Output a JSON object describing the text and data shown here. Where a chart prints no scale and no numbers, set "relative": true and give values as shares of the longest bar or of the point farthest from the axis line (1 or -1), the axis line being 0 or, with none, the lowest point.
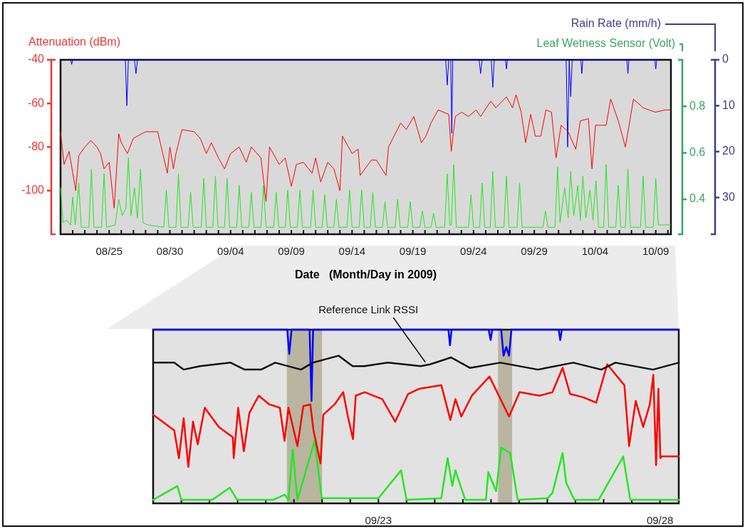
{
  "chart_data": [
    {
      "type": "line",
      "ylabel": "Attenuation (dBm)",
      "y2label": "Leaf Wetness Sensor (Volt)",
      "y3label": "Rain Rate (mm/h)",
      "xlabel": "Date   (Month/Day in 2009)",
      "xlim": [
        "2009-08-21",
        "2009-10-10T06:00"
      ],
      "xticks": [
        {
          "value": "2009-08-22",
          "label": null
        },
        {
          "value": "2009-08-23",
          "label": null
        },
        {
          "value": "2009-08-24",
          "label": null
        },
        {
          "value": "2009-08-25",
          "label": "08/25"
        },
        {
          "value": "2009-08-26",
          "label": null
        },
        {
          "value": "2009-08-27",
          "label": null
        },
        {
          "value": "2009-08-28",
          "label": null
        },
        {
          "value": "2009-08-29",
          "label": null
        },
        {
          "value": "2009-08-30",
          "label": "08/30"
        },
        {
          "value": "2009-08-31",
          "label": null
        },
        {
          "value": "2009-09-01",
          "label": null
        },
        {
          "value": "2009-09-02",
          "label": null
        },
        {
          "value": "2009-09-03",
          "label": null
        },
        {
          "value": "2009-09-04",
          "label": "09/04"
        },
        {
          "value": "2009-09-05",
          "label": null
        },
        {
          "value": "2009-09-06",
          "label": null
        },
        {
          "value": "2009-09-07",
          "label": null
        },
        {
          "value": "2009-09-08",
          "label": null
        },
        {
          "value": "2009-09-09",
          "label": "09/09"
        },
        {
          "value": "2009-09-10",
          "label": null
        },
        {
          "value": "2009-09-11",
          "label": null
        },
        {
          "value": "2009-09-12",
          "label": null
        },
        {
          "value": "2009-09-13",
          "label": null
        },
        {
          "value": "2009-09-14",
          "label": "09/14"
        },
        {
          "value": "2009-09-15",
          "label": null
        },
        {
          "value": "2009-09-16",
          "label": null
        },
        {
          "value": "2009-09-17",
          "label": null
        },
        {
          "value": "2009-09-18",
          "label": null
        },
        {
          "value": "2009-09-19",
          "label": "09/19"
        },
        {
          "value": "2009-09-20",
          "label": null
        },
        {
          "value": "2009-09-21",
          "label": null
        },
        {
          "value": "2009-09-22",
          "label": null
        },
        {
          "value": "2009-09-23",
          "label": null
        },
        {
          "value": "2009-09-24",
          "label": "09/24"
        },
        {
          "value": "2009-09-25",
          "label": null
        },
        {
          "value": "2009-09-26",
          "label": null
        },
        {
          "value": "2009-09-27",
          "label": null
        },
        {
          "value": "2009-09-28",
          "label": null
        },
        {
          "value": "2009-09-29",
          "label": "09/29"
        },
        {
          "value": "2009-09-30",
          "label": null
        },
        {
          "value": "2009-10-01",
          "label": null
        },
        {
          "value": "2009-10-02",
          "label": null
        },
        {
          "value": "2009-10-03",
          "label": null
        },
        {
          "value": "2009-10-04",
          "label": "10/04"
        },
        {
          "value": "2009-10-05",
          "label": null
        },
        {
          "value": "2009-10-06",
          "label": null
        },
        {
          "value": "2009-10-07",
          "label": null
        },
        {
          "value": "2009-10-08",
          "label": null
        },
        {
          "value": "2009-10-09",
          "label": "10/09"
        },
        {
          "value": "2009-10-10",
          "label": null
        }
      ],
      "ylim": [
        -120,
        -40
      ],
      "yticks": [
        -40,
        -60,
        -80,
        -100
      ],
      "y2lim": [
        0.25,
        1.0
      ],
      "y2ticks": [
        0.4,
        0.6,
        0.8
      ],
      "y3lim": [
        38,
        0
      ],
      "y3ticks": [
        0,
        10,
        20,
        30
      ],
      "series": [
        {
          "color": "#ff0000",
          "x": [
            "2009-08-21T00:00",
            "2009-08-21T07:00",
            "2009-08-21T17:00",
            "2009-08-22T06:00",
            "2009-08-22T12:00",
            "2009-08-23T00:00",
            "2009-08-23T12:00",
            "2009-08-24T00:00",
            "2009-08-24T07:00",
            "2009-08-24T14:00",
            "2009-08-25T00:00",
            "2009-08-25T10:00",
            "2009-08-25T19:00",
            "2009-08-26T00:00",
            "2009-08-26T12:00",
            "2009-08-27T00:00",
            "2009-08-28T00:00",
            "2009-08-29T00:00",
            "2009-08-29T12:00",
            "2009-08-29T19:00",
            "2009-08-30T00:00",
            "2009-08-30T07:00",
            "2009-08-30T12:00",
            "2009-08-31T00:00",
            "2009-09-01T00:00",
            "2009-09-01T12:00",
            "2009-09-02T00:00",
            "2009-09-02T10:00",
            "2009-09-03T00:00",
            "2009-09-03T12:00",
            "2009-09-04T00:00",
            "2009-09-04T17:00",
            "2009-09-05T07:00",
            "2009-09-05T17:00",
            "2009-09-06T12:00",
            "2009-09-06T22:00",
            "2009-09-07T05:00",
            "2009-09-08T00:00",
            "2009-09-08T12:00",
            "2009-09-09T00:00",
            "2009-09-09T10:00",
            "2009-09-10T00:00",
            "2009-09-10T17:00",
            "2009-09-11T00:00",
            "2009-09-11T10:00",
            "2009-09-12T00:00",
            "2009-09-12T12:00",
            "2009-09-13T00:00",
            "2009-09-13T05:00",
            "2009-09-14T00:00",
            "2009-09-14T12:00",
            "2009-09-14T16:00",
            "2009-09-15T14:00",
            "2009-09-16T00:00",
            "2009-09-16T19:00",
            "2009-09-17T00:00",
            "2009-09-18T00:00",
            "2009-09-18T11:00",
            "2009-09-19T02:00",
            "2009-09-19T17:00",
            "2009-09-20T02:00",
            "2009-09-20T12:00",
            "2009-09-21T02:00",
            "2009-09-21T23:00",
            "2009-09-22T04:00",
            "2009-09-22T12:00",
            "2009-09-23T00:00",
            "2009-09-23T14:00",
            "2009-09-24T05:00",
            "2009-09-24T14:00",
            "2009-09-25T10:00",
            "2009-09-25T20:00",
            "2009-09-26T17:00",
            "2009-09-27T05:00",
            "2009-09-27T12:00",
            "2009-09-27T22:00",
            "2009-09-28T07:00",
            "2009-09-28T17:00",
            "2009-09-29T02:00",
            "2009-09-29T13:00",
            "2009-09-29T23:00",
            "2009-09-30T10:00",
            "2009-09-30T19:00",
            "2009-10-01T05:00",
            "2009-10-01T19:00",
            "2009-10-02T10:00",
            "2009-10-02T19:00",
            "2009-10-03T11:00",
            "2009-10-03T18:00",
            "2009-10-04T01:00",
            "2009-10-04T22:00",
            "2009-10-05T07:00",
            "2009-10-05T22:00",
            "2009-10-06T12:00",
            "2009-10-06T23:00",
            "2009-10-07T04:00",
            "2009-10-07T23:00",
            "2009-10-08T23:00",
            "2009-10-09T19:00",
            "2009-10-10T05:00"
          ],
          "values": [
            -73,
            -88,
            -82,
            -100,
            -84,
            -80,
            -77,
            -80,
            -83,
            -90,
            -87,
            -108,
            -74,
            -78,
            -83,
            -76,
            -73,
            -73,
            -85,
            -92,
            -80,
            -90,
            -83,
            -72,
            -73,
            -76,
            -83,
            -78,
            -85,
            -90,
            -83,
            -80,
            -87,
            -80,
            -85,
            -105,
            -80,
            -88,
            -85,
            -98,
            -88,
            -87,
            -92,
            -85,
            -96,
            -87,
            -90,
            -100,
            -75,
            -83,
            -81,
            -93,
            -86,
            -86,
            -93,
            -80,
            -69,
            -72,
            -66,
            -78,
            -75,
            -69,
            -63,
            -65,
            -82,
            -66,
            -64,
            -66,
            -63,
            -66,
            -59,
            -62,
            -57,
            -62,
            -56,
            -64,
            -78,
            -65,
            -75,
            -75,
            -63,
            -64,
            -85,
            -70,
            -73,
            -81,
            -68,
            -67,
            -90,
            -70,
            -70,
            -58,
            -68,
            -80,
            -65,
            -58,
            -62,
            -64,
            -63,
            -63
          ]
        },
        {
          "color": "#22e822",
          "axis": "y2",
          "x": [
            "2009-08-21T00:00",
            "2009-08-21T05:00",
            "2009-08-21T12:00",
            "2009-08-21T20:00",
            "2009-08-22T00:00",
            "2009-08-22T05:00",
            "2009-08-22T12:00",
            "2009-08-22T17:00",
            "2009-08-23T08:00",
            "2009-08-23T13:00",
            "2009-08-23T18:00",
            "2009-08-24T09:00",
            "2009-08-24T14:00",
            "2009-08-24T19:00",
            "2009-08-25T12:00",
            "2009-08-25T19:00",
            "2009-08-26T02:00",
            "2009-08-26T09:00",
            "2009-08-26T14:00",
            "2009-08-26T19:00",
            "2009-08-27T02:00",
            "2009-08-27T08:00",
            "2009-08-27T14:00",
            "2009-08-27T19:00",
            "2009-08-28T04:00",
            "2009-08-29T12:00",
            "2009-08-29T17:00",
            "2009-08-29T22:00",
            "2009-08-30T12:00",
            "2009-08-30T17:00",
            "2009-08-30T22:00",
            "2009-08-31T12:00",
            "2009-08-31T17:00",
            "2009-08-31T22:00",
            "2009-09-01T14:00",
            "2009-09-01T19:00",
            "2009-09-02T00:00",
            "2009-09-02T13:00",
            "2009-09-02T18:00",
            "2009-09-02T23:00",
            "2009-09-03T12:00",
            "2009-09-03T17:00",
            "2009-09-03T22:00",
            "2009-09-04T12:00",
            "2009-09-04T17:00",
            "2009-09-04T22:00",
            "2009-09-05T12:00",
            "2009-09-05T17:00",
            "2009-09-05T22:00",
            "2009-09-06T12:00",
            "2009-09-06T17:00",
            "2009-09-06T22:00",
            "2009-09-07T13:00",
            "2009-09-07T18:00",
            "2009-09-07T23:00",
            "2009-09-08T12:00",
            "2009-09-08T17:00",
            "2009-09-08T22:00",
            "2009-09-09T12:00",
            "2009-09-09T17:00",
            "2009-09-09T22:00",
            "2009-09-10T14:00",
            "2009-09-10T19:00",
            "2009-09-11T00:00",
            "2009-09-11T13:00",
            "2009-09-11T18:00",
            "2009-09-11T23:00",
            "2009-09-12T12:00",
            "2009-09-12T17:00",
            "2009-09-12T22:00",
            "2009-09-13T14:00",
            "2009-09-13T19:00",
            "2009-09-14T00:00",
            "2009-09-14T14:00",
            "2009-09-14T19:00",
            "2009-09-15T00:00",
            "2009-09-15T12:00",
            "2009-09-15T17:00",
            "2009-09-15T22:00",
            "2009-09-16T12:00",
            "2009-09-16T17:00",
            "2009-09-16T22:00",
            "2009-09-17T13:00",
            "2009-09-17T18:00",
            "2009-09-17T23:00",
            "2009-09-18T14:00",
            "2009-09-18T19:00",
            "2009-09-19T00:00",
            "2009-09-19T14:00",
            "2009-09-19T19:00",
            "2009-09-20T00:00",
            "2009-09-20T12:00",
            "2009-09-20T17:00",
            "2009-09-20T22:00",
            "2009-09-21T15:00",
            "2009-09-21T20:00",
            "2009-09-22T01:00",
            "2009-09-22T04:00",
            "2009-09-22T09:00",
            "2009-09-22T14:00",
            "2009-09-23T14:00",
            "2009-09-23T19:00",
            "2009-09-24T00:00",
            "2009-09-24T12:00",
            "2009-09-24T17:00",
            "2009-09-24T22:00",
            "2009-09-25T09:00",
            "2009-09-25T14:00",
            "2009-09-25T19:00",
            "2009-09-26T12:00",
            "2009-09-26T17:00",
            "2009-09-26T22:00",
            "2009-09-27T14:00",
            "2009-09-27T19:00",
            "2009-09-28T00:00",
            "2009-09-29T17:00",
            "2009-09-29T22:00",
            "2009-09-30T03:00",
            "2009-09-30T17:00",
            "2009-09-30T22:00",
            "2009-10-01T03:00",
            "2009-10-01T12:00",
            "2009-10-01T19:00",
            "2009-10-02T00:00",
            "2009-10-02T06:00",
            "2009-10-02T14:00",
            "2009-10-02T19:00",
            "2009-10-03T00:00",
            "2009-10-03T06:00",
            "2009-10-03T14:00",
            "2009-10-03T20:00",
            "2009-10-04T02:00",
            "2009-10-04T07:00",
            "2009-10-04T17:00",
            "2009-10-04T22:00",
            "2009-10-05T03:00",
            "2009-10-05T17:00",
            "2009-10-05T22:00",
            "2009-10-06T03:00",
            "2009-10-06T12:00",
            "2009-10-06T17:00",
            "2009-10-06T22:00",
            "2009-10-07T18:00",
            "2009-10-07T23:00",
            "2009-10-08T04:00",
            "2009-10-08T19:00",
            "2009-10-09T00:00",
            "2009-10-09T05:00",
            "2009-10-10T05:00"
          ],
          "values": [
            0.45,
            0.3,
            0.31,
            0.29,
            0.41,
            0.29,
            0.47,
            0.28,
            0.28,
            0.53,
            0.28,
            0.28,
            0.51,
            0.28,
            0.29,
            0.4,
            0.33,
            0.36,
            0.58,
            0.33,
            0.45,
            0.32,
            0.53,
            0.3,
            0.29,
            0.28,
            0.44,
            0.28,
            0.28,
            0.51,
            0.28,
            0.28,
            0.43,
            0.28,
            0.28,
            0.49,
            0.28,
            0.28,
            0.5,
            0.28,
            0.28,
            0.49,
            0.28,
            0.28,
            0.46,
            0.28,
            0.28,
            0.43,
            0.28,
            0.28,
            0.46,
            0.28,
            0.28,
            0.43,
            0.28,
            0.28,
            0.44,
            0.28,
            0.28,
            0.44,
            0.28,
            0.28,
            0.44,
            0.28,
            0.28,
            0.42,
            0.28,
            0.28,
            0.4,
            0.28,
            0.28,
            0.44,
            0.28,
            0.28,
            0.44,
            0.28,
            0.28,
            0.43,
            0.28,
            0.28,
            0.39,
            0.28,
            0.28,
            0.4,
            0.28,
            0.28,
            0.39,
            0.28,
            0.28,
            0.35,
            0.28,
            0.28,
            0.34,
            0.28,
            0.28,
            0.51,
            0.29,
            0.29,
            0.55,
            0.28,
            0.28,
            0.42,
            0.28,
            0.28,
            0.47,
            0.28,
            0.28,
            0.52,
            0.28,
            0.28,
            0.5,
            0.28,
            0.28,
            0.47,
            0.28,
            0.28,
            0.35,
            0.28,
            0.28,
            0.54,
            0.3,
            0.45,
            0.32,
            0.52,
            0.33,
            0.46,
            0.31,
            0.5,
            0.32,
            0.44,
            0.31,
            0.48,
            0.28,
            0.28,
            0.55,
            0.28,
            0.28,
            0.46,
            0.28,
            0.28,
            0.53,
            0.28,
            0.28,
            0.5,
            0.28,
            0.28,
            0.49,
            0.29,
            0.29
          ]
        },
        {
          "color": "#0000ff",
          "axis": "y3",
          "x": [
            "2009-08-21T20:00",
            "2009-08-21T22:00",
            "2009-08-22T00:00",
            "2009-08-26T08:00",
            "2009-08-26T11:00",
            "2009-08-26T14:00",
            "2009-08-27T02:00",
            "2009-08-27T05:00",
            "2009-08-27T08:00",
            "2009-09-21T17:00",
            "2009-09-21T20:00",
            "2009-09-21T23:00",
            "2009-09-22T03:00",
            "2009-09-22T05:00",
            "2009-09-22T07:00",
            "2009-09-24T11:00",
            "2009-09-24T14:00",
            "2009-09-24T17:00",
            "2009-09-25T11:00",
            "2009-09-25T14:00",
            "2009-09-25T17:00",
            "2009-09-26T15:00",
            "2009-09-26T17:00",
            "2009-09-26T19:00",
            "2009-10-01T15:00",
            "2009-10-01T18:00",
            "2009-10-01T21:00",
            "2009-10-02T00:00",
            "2009-10-02T03:00",
            "2009-10-02T20:00",
            "2009-10-02T22:00",
            "2009-10-03T00:00",
            "2009-10-06T15:00",
            "2009-10-06T17:00",
            "2009-10-06T19:00",
            "2009-10-08T22:00",
            "2009-10-09T00:00",
            "2009-10-09T02:00"
          ],
          "values": [
            0,
            1,
            0,
            0,
            10,
            0,
            0,
            3,
            0,
            0,
            5.5,
            0,
            0,
            16,
            0,
            0,
            3,
            0,
            0,
            6,
            0,
            0,
            2,
            0,
            0,
            19,
            0,
            8,
            0,
            0,
            3,
            0,
            0,
            3,
            0,
            0,
            2,
            0
          ]
        }
      ]
    },
    {
      "type": "line",
      "relative": true,
      "tick_labels": "x",
      "xlim": [
        "2009-09-19",
        "2009-09-28T08:00"
      ],
      "xticks": [
        {
          "value": "2009-09-19T12:00",
          "label": null
        },
        {
          "value": "2009-09-20",
          "label": null
        },
        {
          "value": "2009-09-20T12:00",
          "label": null
        },
        {
          "value": "2009-09-21",
          "label": null
        },
        {
          "value": "2009-09-21T12:00",
          "label": null
        },
        {
          "value": "2009-09-22",
          "label": null
        },
        {
          "value": "2009-09-22T12:00",
          "label": null
        },
        {
          "value": "2009-09-23",
          "label": "09/23"
        },
        {
          "value": "2009-09-23T12:00",
          "label": null
        },
        {
          "value": "2009-09-24",
          "label": null
        },
        {
          "value": "2009-09-24T12:00",
          "label": null
        },
        {
          "value": "2009-09-25",
          "label": null
        },
        {
          "value": "2009-09-25T12:00",
          "label": null
        },
        {
          "value": "2009-09-26",
          "label": null
        },
        {
          "value": "2009-09-26T12:00",
          "label": null
        },
        {
          "value": "2009-09-27",
          "label": null
        },
        {
          "value": "2009-09-27T12:00",
          "label": null
        },
        {
          "value": "2009-09-28",
          "label": "09/28"
        }
      ],
      "bands": [
        {
          "axis": "x",
          "from": "2009-09-21T09:00",
          "to": "2009-09-22T00:00",
          "color": "#b9b5a0"
        },
        {
          "axis": "x",
          "from": "2009-09-25T03:00",
          "to": "2009-09-25T09:00",
          "color": "#b9b5a0"
        }
      ],
      "annotations": [
        {
          "text": "Reference Link RSSI",
          "x": "2009-09-23T20:00",
          "y": 0.8
        }
      ],
      "series": [
        {
          "color": "#111111",
          "x": [
            "2009-09-19T00:00",
            "2009-09-19T09:00",
            "2009-09-19T13:00",
            "2009-09-19T20:00",
            "2009-09-20T09:00",
            "2009-09-20T15:00",
            "2009-09-20T22:00",
            "2009-09-21T04:00",
            "2009-09-21T15:00",
            "2009-09-21T20:00",
            "2009-09-22T07:00",
            "2009-09-22T13:00",
            "2009-09-22T18:00",
            "2009-09-23T04:00",
            "2009-09-23T18:00",
            "2009-09-23T22:00",
            "2009-09-24T07:00",
            "2009-09-24T15:00",
            "2009-09-25T04:00",
            "2009-09-25T20:00",
            "2009-09-26T11:00",
            "2009-09-26T23:00",
            "2009-09-27T05:00",
            "2009-09-27T21:00",
            "2009-09-28T08:00"
          ],
          "values": [
            0.81,
            0.81,
            0.77,
            0.79,
            0.81,
            0.77,
            0.77,
            0.81,
            0.77,
            0.81,
            0.85,
            0.79,
            0.79,
            0.81,
            0.79,
            0.8,
            0.84,
            0.78,
            0.81,
            0.77,
            0.81,
            0.77,
            0.81,
            0.77,
            0.81
          ]
        },
        {
          "color": "#ff0000",
          "x": [
            "2009-09-19T00:00",
            "2009-09-19T09:00",
            "2009-09-19T11:00",
            "2009-09-19T13:00",
            "2009-09-19T15:00",
            "2009-09-19T17:00",
            "2009-09-19T19:00",
            "2009-09-19T22:00",
            "2009-09-20T04:00",
            "2009-09-20T10:00",
            "2009-09-20T10:20",
            "2009-09-20T12:15",
            "2009-09-20T14:40",
            "2009-09-20T17:00",
            "2009-09-20T21:00",
            "2009-09-21T01:30",
            "2009-09-21T06:00",
            "2009-09-21T08:00",
            "2009-09-21T09:40",
            "2009-09-21T13:30",
            "2009-09-21T16:00",
            "2009-09-21T19:00",
            "2009-09-21T20:20",
            "2009-09-21T23:20",
            "2009-09-22T00:30",
            "2009-09-22T05:20",
            "2009-09-22T09:00",
            "2009-09-22T10:50",
            "2009-09-22T13:10",
            "2009-09-22T14:20",
            "2009-09-22T18:10",
            "2009-09-23T01:40",
            "2009-09-23T07:10",
            "2009-09-23T12:40",
            "2009-09-23T17:30",
            "2009-09-24T02:50",
            "2009-09-24T06:40",
            "2009-09-24T08:50",
            "2009-09-24T11:20",
            "2009-09-24T15:50",
            "2009-09-24T23:20",
            "2009-09-25T07:40",
            "2009-09-25T12:10",
            "2009-09-25T20:40",
            "2009-09-26T02:10",
            "2009-09-26T06:30",
            "2009-09-26T09:40",
            "2009-09-26T15:20",
            "2009-09-26T20:50",
            "2009-09-27T01:30",
            "2009-09-27T08:50",
            "2009-09-27T10:50",
            "2009-09-27T13:40",
            "2009-09-27T16:50",
            "2009-09-27T19:40",
            "2009-09-27T21:10",
            "2009-09-27T22:20",
            "2009-09-27T23:20",
            "2009-09-28T00:10",
            "2009-09-28T00:40",
            "2009-09-28T08:00"
          ],
          "values": [
            0.51,
            0.42,
            0.26,
            0.49,
            0.21,
            0.47,
            0.34,
            0.55,
            0.44,
            0.38,
            0.26,
            0.55,
            0.3,
            0.52,
            0.62,
            0.57,
            0.55,
            0.36,
            0.55,
            0.33,
            0.56,
            0.57,
            0.42,
            0.23,
            0.51,
            0.57,
            0.64,
            0.51,
            0.37,
            0.62,
            0.64,
            0.6,
            0.47,
            0.63,
            0.66,
            0.68,
            0.48,
            0.6,
            0.5,
            0.62,
            0.73,
            0.5,
            0.64,
            0.62,
            0.64,
            0.78,
            0.63,
            0.61,
            0.58,
            0.8,
            0.68,
            0.33,
            0.59,
            0.44,
            0.57,
            0.74,
            0.22,
            0.66,
            0.26,
            0.27,
            0.27
          ]
        },
        {
          "color": "#22e822",
          "x": [
            "2009-09-19T00:00",
            "2009-09-19T10:20",
            "2009-09-19T12:00",
            "2009-09-20T01:10",
            "2009-09-20T08:40",
            "2009-09-20T11:50",
            "2009-09-21T03:10",
            "2009-09-21T08:00",
            "2009-09-21T09:40",
            "2009-09-21T11:30",
            "2009-09-21T13:30",
            "2009-09-21T20:50",
            "2009-09-21T23:50",
            "2009-09-23T00:00",
            "2009-09-23T09:40",
            "2009-09-23T12:00",
            "2009-09-24T02:50",
            "2009-09-24T03:50",
            "2009-09-24T05:30",
            "2009-09-24T07:30",
            "2009-09-24T08:50",
            "2009-09-24T13:00",
            "2009-09-24T21:50",
            "2009-09-24T22:50",
            "2009-09-25T02:10",
            "2009-09-25T04:20",
            "2009-09-25T08:10",
            "2009-09-25T11:20",
            "2009-09-26T00:10",
            "2009-09-26T02:10",
            "2009-09-26T06:30",
            "2009-09-26T08:00",
            "2009-09-26T11:30",
            "2009-09-26T21:50",
            "2009-09-27T08:20",
            "2009-09-27T11:20",
            "2009-09-28T08:00"
          ],
          "values": [
            0.02,
            0.1,
            0.02,
            0.02,
            0.09,
            0.02,
            0.02,
            0.05,
            0.02,
            0.31,
            0.02,
            0.36,
            0.03,
            0.03,
            0.19,
            0.02,
            0.03,
            0.12,
            0.26,
            0.1,
            0.19,
            0.02,
            0.02,
            0.18,
            0.07,
            0.32,
            0.29,
            0.02,
            0.03,
            0.06,
            0.29,
            0.12,
            0.02,
            0.02,
            0.27,
            0.02,
            0.02
          ]
        },
        {
          "color": "#0000ff",
          "x": [
            "2009-09-19T00:00",
            "2009-09-21T09:10",
            "2009-09-21T10:00",
            "2009-09-21T11:00",
            "2009-09-21T18:40",
            "2009-09-21T19:30",
            "2009-09-21T20:10",
            "2009-09-24T05:50",
            "2009-09-24T06:30",
            "2009-09-24T07:10",
            "2009-09-24T23:00",
            "2009-09-24T23:50",
            "2009-09-25T00:30",
            "2009-09-25T04:20",
            "2009-09-25T05:20",
            "2009-09-25T06:30",
            "2009-09-25T07:40",
            "2009-09-25T08:40",
            "2009-09-26T04:50",
            "2009-09-26T05:30",
            "2009-09-26T06:10",
            "2009-09-28T08:00"
          ],
          "values": [
            1,
            1,
            0.86,
            1,
            1,
            0.59,
            1,
            1,
            0.91,
            1,
            1,
            0.94,
            1,
            1,
            0.85,
            0.9,
            0.85,
            1,
            1,
            0.94,
            1,
            1
          ]
        }
      ]
    }
  ]
}
